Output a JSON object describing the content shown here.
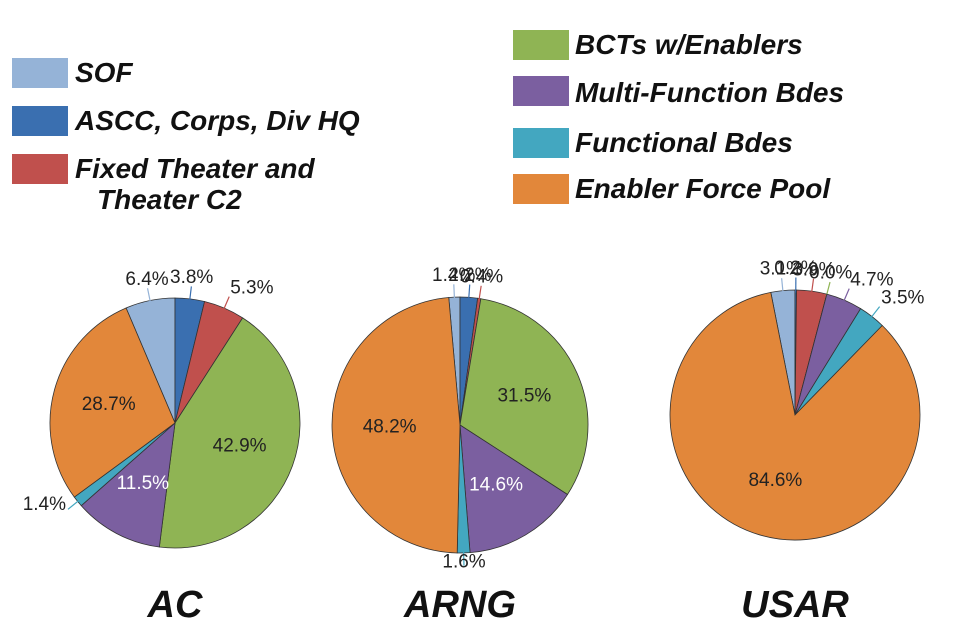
{
  "chart_data": [
    {
      "type": "pie",
      "title": "AC",
      "categories": [
        "SOF",
        "ASCC, Corps, Div HQ",
        "Fixed Theater  and Theater C2",
        "BCTs  w/Enablers",
        "Multi-Function Bdes",
        "Functional Bdes",
        "Enabler Force Pool"
      ],
      "values": [
        6.4,
        3.8,
        5.3,
        42.9,
        11.5,
        1.4,
        28.7
      ],
      "value_labels": [
        "6.4%",
        "3.8%",
        "5.3%",
        "42.9%",
        "11.5%",
        "1.4%",
        "28.7%"
      ],
      "colors": [
        "#95b3d7",
        "#3a6fb0",
        "#c0504d",
        "#8fb454",
        "#7b5fa0",
        "#43a7c0",
        "#e2873a"
      ]
    },
    {
      "type": "pie",
      "title": "ARNG",
      "categories": [
        "SOF",
        "ASCC, Corps, Div HQ",
        "Fixed Theater  and Theater C2",
        "BCTs  w/Enablers",
        "Multi-Function Bdes",
        "Functional Bdes",
        "Enabler Force Pool"
      ],
      "values": [
        1.4,
        2.2,
        0.4,
        31.5,
        14.6,
        1.6,
        48.2
      ],
      "value_labels": [
        "1.4%",
        "2.2%",
        "0.4%",
        "31.5%",
        "14.6%",
        "1.6%",
        "48.2%"
      ],
      "colors": [
        "#95b3d7",
        "#3a6fb0",
        "#c0504d",
        "#8fb454",
        "#7b5fa0",
        "#43a7c0",
        "#e2873a"
      ]
    },
    {
      "type": "pie",
      "title": "USAR",
      "categories": [
        "SOF",
        "ASCC, Corps, Div HQ",
        "Fixed Theater  and Theater C2",
        "BCTs  w/Enablers",
        "Multi-Function Bdes",
        "Functional Bdes",
        "Enabler Force Pool"
      ],
      "values": [
        3.1,
        0.2,
        3.9,
        0.0,
        4.7,
        3.5,
        84.6
      ],
      "value_labels": [
        "3.1%",
        "0.2%",
        "3.9%",
        "0.0%",
        "4.7%",
        "3.5%",
        "84.6%"
      ],
      "colors": [
        "#95b3d7",
        "#3a6fb0",
        "#c0504d",
        "#8fb454",
        "#7b5fa0",
        "#43a7c0",
        "#e2873a"
      ]
    }
  ]
}
